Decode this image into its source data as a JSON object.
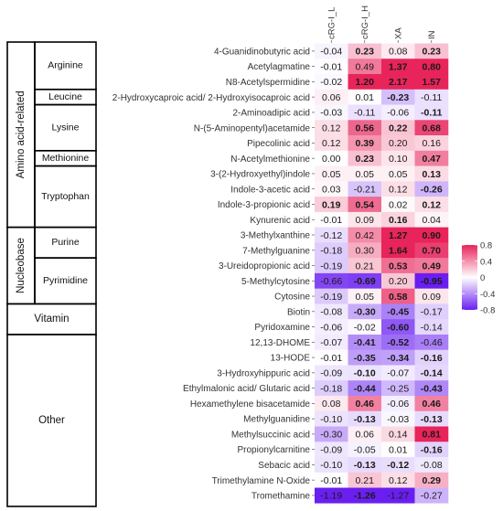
{
  "chart_data": {
    "type": "heatmap",
    "columns": [
      "cRG-I_L",
      "cRG-I_H",
      "XA",
      "IN"
    ],
    "rows": [
      {
        "label": "4-Guanidinobutyric acid",
        "values": [
          -0.04,
          0.23,
          0.08,
          0.23
        ],
        "bold": [
          false,
          true,
          false,
          true
        ]
      },
      {
        "label": "Acetylagmatine",
        "values": [
          -0.01,
          0.49,
          1.37,
          0.8
        ],
        "bold": [
          false,
          false,
          true,
          true
        ]
      },
      {
        "label": "N8-Acetylspermidine",
        "values": [
          -0.02,
          1.2,
          2.17,
          1.57
        ],
        "bold": [
          false,
          true,
          true,
          true
        ]
      },
      {
        "label": "2-Hydroxycaproic acid/ 2-Hydroxyisocaproic acid",
        "values": [
          0.06,
          0.01,
          -0.23,
          -0.11
        ],
        "bold": [
          false,
          false,
          true,
          false
        ]
      },
      {
        "label": "2-Aminoadipic acid",
        "values": [
          -0.03,
          -0.11,
          -0.06,
          -0.11
        ],
        "bold": [
          false,
          false,
          false,
          true
        ]
      },
      {
        "label": "N-(5-Aminopentyl)acetamide",
        "values": [
          0.12,
          0.56,
          0.22,
          0.68
        ],
        "bold": [
          false,
          true,
          true,
          true
        ]
      },
      {
        "label": "Pipecolinic acid",
        "values": [
          0.12,
          0.39,
          0.2,
          0.16
        ],
        "bold": [
          false,
          true,
          false,
          false
        ]
      },
      {
        "label": "N-Acetylmethionine",
        "values": [
          0.0,
          0.23,
          0.1,
          0.47
        ],
        "bold": [
          false,
          true,
          false,
          true
        ]
      },
      {
        "label": "3-(2-Hydroxyethyl)indole",
        "values": [
          0.05,
          0.05,
          0.05,
          0.13
        ],
        "bold": [
          false,
          false,
          false,
          true
        ]
      },
      {
        "label": "Indole-3-acetic acid",
        "values": [
          0.03,
          -0.21,
          0.12,
          -0.26
        ],
        "bold": [
          false,
          false,
          false,
          true
        ]
      },
      {
        "label": "Indole-3-propionic acid",
        "values": [
          0.19,
          0.54,
          0.02,
          0.12
        ],
        "bold": [
          true,
          true,
          false,
          true
        ]
      },
      {
        "label": "Kynurenic acid",
        "values": [
          -0.01,
          0.09,
          0.16,
          0.04
        ],
        "bold": [
          false,
          false,
          true,
          false
        ]
      },
      {
        "label": "3-Methylxanthine",
        "values": [
          -0.12,
          0.42,
          1.27,
          0.9
        ],
        "bold": [
          false,
          false,
          true,
          true
        ]
      },
      {
        "label": "7-Methylguanine",
        "values": [
          -0.18,
          0.3,
          1.64,
          0.7
        ],
        "bold": [
          false,
          false,
          true,
          true
        ]
      },
      {
        "label": "3-Ureidopropionic acid",
        "values": [
          -0.19,
          0.21,
          0.53,
          0.49
        ],
        "bold": [
          false,
          false,
          true,
          true
        ]
      },
      {
        "label": "5-Methylcytosine",
        "values": [
          -0.66,
          -0.69,
          0.2,
          -0.95
        ],
        "bold": [
          false,
          true,
          false,
          true
        ]
      },
      {
        "label": "Cytosine",
        "values": [
          -0.19,
          0.05,
          0.58,
          0.09
        ],
        "bold": [
          false,
          false,
          true,
          false
        ]
      },
      {
        "label": "Biotin",
        "values": [
          -0.08,
          -0.3,
          -0.45,
          -0.17
        ],
        "bold": [
          false,
          true,
          true,
          false
        ]
      },
      {
        "label": "Pyridoxamine",
        "values": [
          -0.06,
          -0.02,
          -0.6,
          -0.14
        ],
        "bold": [
          false,
          false,
          true,
          false
        ]
      },
      {
        "label": "12,13-DHOME",
        "values": [
          -0.07,
          -0.41,
          -0.52,
          -0.46
        ],
        "bold": [
          false,
          true,
          true,
          false
        ]
      },
      {
        "label": "13-HODE",
        "values": [
          -0.01,
          -0.35,
          -0.34,
          -0.16
        ],
        "bold": [
          false,
          true,
          true,
          true
        ]
      },
      {
        "label": "3-Hydroxyhippuric acid",
        "values": [
          -0.09,
          -0.1,
          -0.07,
          -0.14
        ],
        "bold": [
          false,
          true,
          false,
          true
        ]
      },
      {
        "label": "Ethylmalonic acid/ Glutaric acid",
        "values": [
          -0.18,
          -0.44,
          -0.25,
          -0.43
        ],
        "bold": [
          false,
          true,
          false,
          true
        ]
      },
      {
        "label": "Hexamethylene bisacetamide",
        "values": [
          0.08,
          0.46,
          -0.06,
          0.46
        ],
        "bold": [
          false,
          true,
          false,
          true
        ]
      },
      {
        "label": "Methylguanidine",
        "values": [
          -0.1,
          -0.13,
          -0.03,
          -0.13
        ],
        "bold": [
          false,
          true,
          false,
          true
        ]
      },
      {
        "label": "Methylsuccinic acid",
        "values": [
          -0.3,
          0.06,
          0.14,
          0.81
        ],
        "bold": [
          false,
          false,
          false,
          true
        ]
      },
      {
        "label": "Propionylcarnitine",
        "values": [
          -0.09,
          -0.05,
          0.01,
          -0.16
        ],
        "bold": [
          false,
          false,
          false,
          true
        ]
      },
      {
        "label": "Sebacic acid",
        "values": [
          -0.1,
          -0.13,
          -0.12,
          -0.08
        ],
        "bold": [
          false,
          true,
          true,
          false
        ]
      },
      {
        "label": "Trimethylamine N-Oxide",
        "values": [
          -0.01,
          0.21,
          0.12,
          0.29
        ],
        "bold": [
          false,
          false,
          false,
          true
        ]
      },
      {
        "label": "Tromethamine",
        "values": [
          -1.19,
          -1.26,
          -1.27,
          -0.27
        ],
        "bold": [
          false,
          true,
          false,
          false
        ]
      }
    ],
    "groups": [
      {
        "label": "Amino acid-related",
        "subgroups": [
          {
            "label": "Arginine",
            "rows": [
              0,
              2
            ]
          },
          {
            "label": "Leucine",
            "rows": [
              3,
              3
            ]
          },
          {
            "label": "Lysine",
            "rows": [
              4,
              6
            ]
          },
          {
            "label": "Methionine",
            "rows": [
              7,
              7
            ]
          },
          {
            "label": "Tryptophan",
            "rows": [
              8,
              11
            ]
          }
        ]
      },
      {
        "label": "Nucleobase",
        "subgroups": [
          {
            "label": "Purine",
            "rows": [
              12,
              13
            ]
          },
          {
            "label": "Pyrimidine",
            "rows": [
              14,
              16
            ]
          }
        ]
      },
      {
        "label": "Vitamin",
        "subgroups": [],
        "rows": [
          17,
          18
        ]
      },
      {
        "label": "Other",
        "subgroups": [],
        "rows": [
          19,
          29
        ]
      }
    ],
    "colorbar": {
      "ticks": [
        0.8,
        0.4,
        0,
        -0.4,
        -0.8
      ],
      "tick_labels": [
        "0.8",
        "0.4",
        "0",
        "-0.4",
        "-0.8"
      ],
      "range": [
        -0.8,
        0.8
      ]
    },
    "colors": {
      "positive": "#e8245a",
      "zero": "#ffffff",
      "negative": "#6a1ff0"
    }
  }
}
